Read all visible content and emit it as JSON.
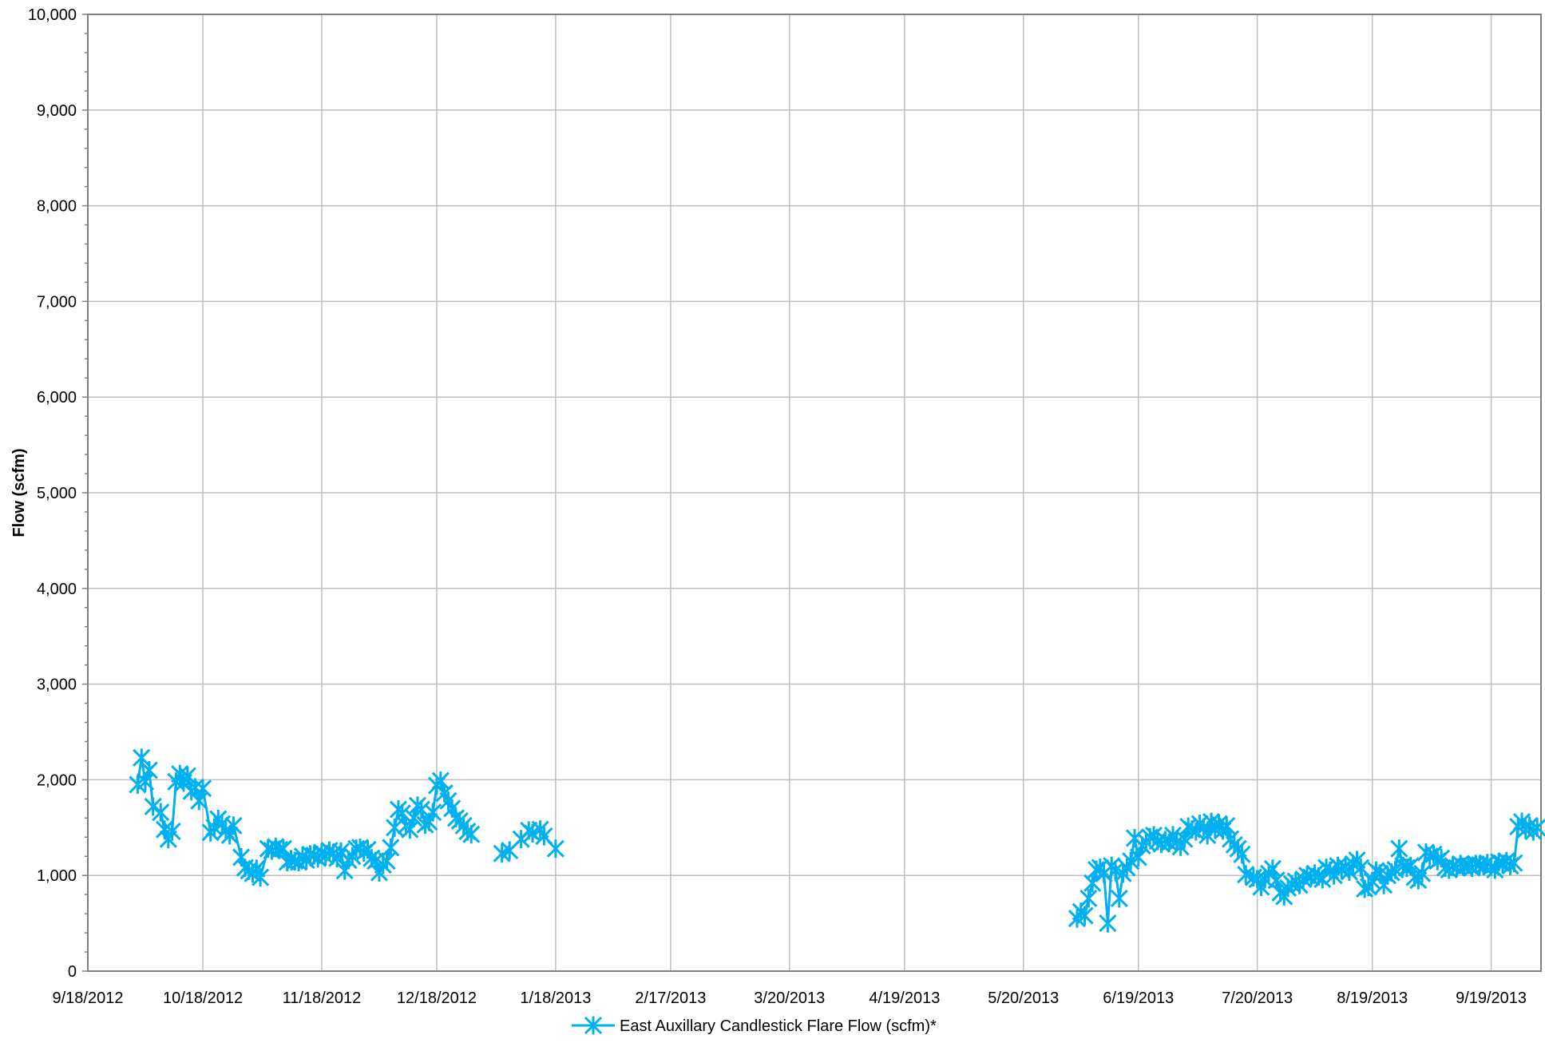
{
  "chart_data": {
    "type": "line",
    "title": "",
    "xlabel": "",
    "ylabel": "Flow (scfm)",
    "ylim": [
      0,
      10000
    ],
    "xlim": [
      "2012-09-18",
      "2013-10-02"
    ],
    "y_ticks": [
      0,
      1000,
      2000,
      3000,
      4000,
      5000,
      6000,
      7000,
      8000,
      9000,
      10000
    ],
    "y_tick_labels": [
      "0",
      "1,000",
      "2,000",
      "3,000",
      "4,000",
      "5,000",
      "6,000",
      "7,000",
      "8,000",
      "9,000",
      "10,000"
    ],
    "x_ticks": [
      "2012-09-18",
      "2012-10-18",
      "2012-11-18",
      "2012-12-18",
      "2013-01-18",
      "2013-02-17",
      "2013-03-20",
      "2013-04-19",
      "2013-05-20",
      "2013-06-19",
      "2013-07-20",
      "2013-08-19",
      "2013-09-19"
    ],
    "x_tick_labels": [
      "9/18/2012",
      "10/18/2012",
      "11/18/2012",
      "12/18/2012",
      "1/18/2013",
      "2/17/2013",
      "3/20/2013",
      "4/19/2013",
      "5/20/2013",
      "6/19/2013",
      "7/20/2013",
      "8/19/2013",
      "9/19/2013"
    ],
    "grid": true,
    "legend_position": "bottom-center",
    "series": [
      {
        "name": "East Auxillary Candlestick Flare Flow (scfm)*",
        "color": "#00B0F0",
        "marker": "star",
        "segments": [
          [
            [
              "2012-10-01",
              1950
            ],
            [
              "2012-10-02",
              2230
            ],
            [
              "2012-10-03",
              1980
            ],
            [
              "2012-10-04",
              2100
            ],
            [
              "2012-10-05",
              1720
            ],
            [
              "2012-10-07",
              1660
            ],
            [
              "2012-10-08",
              1480
            ],
            [
              "2012-10-09",
              1380
            ],
            [
              "2012-10-10",
              1460
            ],
            [
              "2012-10-11",
              1980
            ],
            [
              "2012-10-12",
              2060
            ],
            [
              "2012-10-13",
              1970
            ],
            [
              "2012-10-14",
              2040
            ],
            [
              "2012-10-15",
              1880
            ],
            [
              "2012-10-16",
              1920
            ],
            [
              "2012-10-17",
              1780
            ],
            [
              "2012-10-18",
              1910
            ],
            [
              "2012-10-20",
              1450
            ],
            [
              "2012-10-21",
              1500
            ],
            [
              "2012-10-22",
              1590
            ],
            [
              "2012-10-23",
              1540
            ],
            [
              "2012-10-24",
              1470
            ],
            [
              "2012-10-25",
              1420
            ],
            [
              "2012-10-26",
              1520
            ],
            [
              "2012-10-28",
              1190
            ],
            [
              "2012-10-29",
              1080
            ],
            [
              "2012-10-30",
              1050
            ],
            [
              "2012-10-31",
              1020
            ],
            [
              "2012-11-01",
              1070
            ],
            [
              "2012-11-02",
              980
            ],
            [
              "2012-11-04",
              1280
            ],
            [
              "2012-11-05",
              1260
            ],
            [
              "2012-11-06",
              1300
            ],
            [
              "2012-11-07",
              1270
            ],
            [
              "2012-11-08",
              1280
            ],
            [
              "2012-11-09",
              1140
            ],
            [
              "2012-11-10",
              1170
            ],
            [
              "2012-11-11",
              1150
            ],
            [
              "2012-11-12",
              1140
            ],
            [
              "2012-11-13",
              1200
            ],
            [
              "2012-11-14",
              1160
            ],
            [
              "2012-11-15",
              1220
            ],
            [
              "2012-11-16",
              1210
            ],
            [
              "2012-11-17",
              1180
            ],
            [
              "2012-11-18",
              1240
            ],
            [
              "2012-11-19",
              1200
            ],
            [
              "2012-11-20",
              1260
            ],
            [
              "2012-11-21",
              1230
            ],
            [
              "2012-11-22",
              1180
            ],
            [
              "2012-11-23",
              1250
            ],
            [
              "2012-11-24",
              1050
            ],
            [
              "2012-11-25",
              1160
            ],
            [
              "2012-11-26",
              1200
            ],
            [
              "2012-11-27",
              1280
            ],
            [
              "2012-11-28",
              1290
            ],
            [
              "2012-11-29",
              1240
            ],
            [
              "2012-11-30",
              1270
            ],
            [
              "2012-12-01",
              1180
            ],
            [
              "2012-12-02",
              1150
            ],
            [
              "2012-12-03",
              1030
            ],
            [
              "2012-12-04",
              1110
            ],
            [
              "2012-12-05",
              1150
            ],
            [
              "2012-12-06",
              1290
            ],
            [
              "2012-12-07",
              1500
            ],
            [
              "2012-12-08",
              1690
            ],
            [
              "2012-12-09",
              1650
            ],
            [
              "2012-12-10",
              1520
            ],
            [
              "2012-12-11",
              1480
            ],
            [
              "2012-12-12",
              1600
            ],
            [
              "2012-12-13",
              1730
            ],
            [
              "2012-12-14",
              1690
            ],
            [
              "2012-12-15",
              1530
            ],
            [
              "2012-12-16",
              1560
            ],
            [
              "2012-12-17",
              1660
            ],
            [
              "2012-12-18",
              1940
            ],
            [
              "2012-12-19",
              1990
            ],
            [
              "2012-12-20",
              1860
            ],
            [
              "2012-12-21",
              1780
            ],
            [
              "2012-12-22",
              1700
            ],
            [
              "2012-12-23",
              1600
            ],
            [
              "2012-12-24",
              1570
            ],
            [
              "2012-12-25",
              1520
            ],
            [
              "2012-12-26",
              1460
            ],
            [
              "2012-12-27",
              1430
            ]
          ],
          [
            [
              "2013-01-04",
              1230
            ],
            [
              "2013-01-06",
              1260
            ],
            [
              "2013-01-09",
              1380
            ],
            [
              "2013-01-11",
              1470
            ],
            [
              "2013-01-12",
              1440
            ],
            [
              "2013-01-14",
              1480
            ],
            [
              "2013-01-15",
              1410
            ]
          ],
          [
            [
              "2013-01-18",
              1280
            ]
          ],
          [
            [
              "2013-06-03",
              550
            ],
            [
              "2013-06-04",
              620
            ],
            [
              "2013-06-05",
              580
            ],
            [
              "2013-06-06",
              760
            ],
            [
              "2013-06-07",
              920
            ],
            [
              "2013-06-08",
              1060
            ],
            [
              "2013-06-09",
              1080
            ],
            [
              "2013-06-10",
              1020
            ],
            [
              "2013-06-11",
              500
            ],
            [
              "2013-06-12",
              1100
            ],
            [
              "2013-06-13",
              1050
            ],
            [
              "2013-06-14",
              760
            ],
            [
              "2013-06-15",
              1020
            ],
            [
              "2013-06-16",
              1080
            ],
            [
              "2013-06-17",
              1150
            ],
            [
              "2013-06-18",
              1390
            ],
            [
              "2013-06-19",
              1190
            ],
            [
              "2013-06-20",
              1310
            ],
            [
              "2013-06-21",
              1350
            ],
            [
              "2013-06-22",
              1400
            ],
            [
              "2013-06-23",
              1420
            ],
            [
              "2013-06-24",
              1360
            ],
            [
              "2013-06-25",
              1330
            ],
            [
              "2013-06-26",
              1370
            ],
            [
              "2013-06-27",
              1340
            ],
            [
              "2013-06-28",
              1420
            ],
            [
              "2013-06-29",
              1350
            ],
            [
              "2013-06-30",
              1300
            ],
            [
              "2013-07-01",
              1380
            ],
            [
              "2013-07-02",
              1510
            ],
            [
              "2013-07-03",
              1480
            ],
            [
              "2013-07-04",
              1460
            ],
            [
              "2013-07-05",
              1540
            ],
            [
              "2013-07-06",
              1500
            ],
            [
              "2013-07-07",
              1420
            ],
            [
              "2013-07-08",
              1560
            ],
            [
              "2013-07-09",
              1480
            ],
            [
              "2013-07-10",
              1540
            ],
            [
              "2013-07-11",
              1470
            ],
            [
              "2013-07-12",
              1520
            ],
            [
              "2013-07-13",
              1380
            ],
            [
              "2013-07-14",
              1320
            ],
            [
              "2013-07-15",
              1280
            ],
            [
              "2013-07-16",
              1220
            ],
            [
              "2013-07-17",
              1010
            ],
            [
              "2013-07-19",
              980
            ],
            [
              "2013-07-20",
              960
            ],
            [
              "2013-07-21",
              880
            ],
            [
              "2013-07-22",
              960
            ],
            [
              "2013-07-23",
              1020
            ],
            [
              "2013-07-24",
              1070
            ],
            [
              "2013-07-25",
              950
            ],
            [
              "2013-07-26",
              820
            ],
            [
              "2013-07-27",
              780
            ],
            [
              "2013-07-28",
              870
            ],
            [
              "2013-07-29",
              910
            ],
            [
              "2013-07-30",
              940
            ],
            [
              "2013-07-31",
              900
            ],
            [
              "2013-08-01",
              960
            ],
            [
              "2013-08-02",
              1000
            ],
            [
              "2013-08-03",
              980
            ],
            [
              "2013-08-04",
              1020
            ],
            [
              "2013-08-05",
              990
            ],
            [
              "2013-08-06",
              960
            ],
            [
              "2013-08-07",
              1080
            ],
            [
              "2013-08-08",
              1050
            ],
            [
              "2013-08-09",
              1000
            ],
            [
              "2013-08-10",
              1100
            ],
            [
              "2013-08-11",
              1060
            ],
            [
              "2013-08-12",
              1090
            ],
            [
              "2013-08-13",
              1040
            ],
            [
              "2013-08-14",
              1120
            ],
            [
              "2013-08-15",
              1160
            ],
            [
              "2013-08-16",
              1080
            ],
            [
              "2013-08-17",
              860
            ],
            [
              "2013-08-18",
              880
            ],
            [
              "2013-08-19",
              940
            ],
            [
              "2013-08-20",
              1050
            ],
            [
              "2013-08-21",
              1020
            ],
            [
              "2013-08-22",
              900
            ],
            [
              "2013-08-23",
              1000
            ],
            [
              "2013-08-24",
              1030
            ],
            [
              "2013-08-25",
              1060
            ],
            [
              "2013-08-26",
              1280
            ],
            [
              "2013-08-27",
              1100
            ],
            [
              "2013-08-28",
              1080
            ],
            [
              "2013-08-29",
              1100
            ],
            [
              "2013-08-30",
              980
            ],
            [
              "2013-08-31",
              950
            ],
            [
              "2013-09-01",
              1020
            ],
            [
              "2013-09-02",
              1240
            ],
            [
              "2013-09-03",
              1200
            ],
            [
              "2013-09-04",
              1220
            ],
            [
              "2013-09-05",
              1150
            ],
            [
              "2013-09-06",
              1180
            ],
            [
              "2013-09-07",
              1080
            ],
            [
              "2013-09-08",
              1060
            ],
            [
              "2013-09-09",
              1100
            ],
            [
              "2013-09-10",
              1080
            ],
            [
              "2013-09-11",
              1120
            ],
            [
              "2013-09-12",
              1090
            ],
            [
              "2013-09-13",
              1110
            ],
            [
              "2013-09-14",
              1080
            ],
            [
              "2013-09-15",
              1120
            ],
            [
              "2013-09-16",
              1110
            ],
            [
              "2013-09-17",
              1100
            ],
            [
              "2013-09-18",
              1130
            ],
            [
              "2013-09-19",
              1090
            ],
            [
              "2013-09-20",
              1060
            ],
            [
              "2013-09-21",
              1140
            ],
            [
              "2013-09-22",
              1120
            ],
            [
              "2013-09-23",
              1150
            ],
            [
              "2013-09-24",
              1100
            ],
            [
              "2013-09-25",
              1130
            ],
            [
              "2013-09-26",
              1510
            ],
            [
              "2013-09-27",
              1560
            ],
            [
              "2013-09-28",
              1480
            ],
            [
              "2013-09-29",
              1520
            ],
            [
              "2013-09-30",
              1460
            ],
            [
              "2013-10-01",
              1500
            ]
          ]
        ]
      }
    ]
  }
}
